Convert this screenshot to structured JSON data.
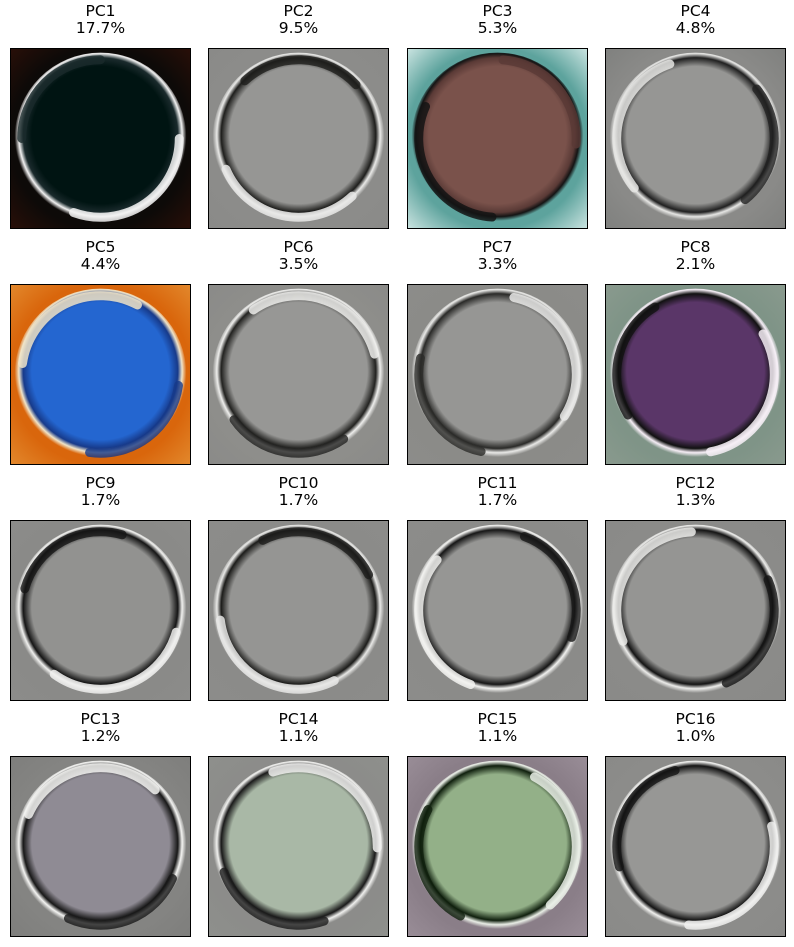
{
  "chart_data": {
    "type": "image-grid",
    "panels": [
      {
        "label": "PC1",
        "variance": "17.7%",
        "bg": "#0d0a08",
        "corner": "#2a0f08",
        "fill": "#001412",
        "ring": "#f2f2f2",
        "inner": "#1a2a2c"
      },
      {
        "label": "PC2",
        "variance": "9.5%",
        "bg": "#8c8c8a",
        "corner": "#8a8a88",
        "fill": "#969694",
        "ring": "#e9e9e7",
        "inner": "#1e1e1c"
      },
      {
        "label": "PC3",
        "variance": "5.3%",
        "bg": "#5da39d",
        "corner": "#d0e7e4",
        "fill": "#7a524b",
        "ring": "#141414",
        "inner": "#5a3a36"
      },
      {
        "label": "PC4",
        "variance": "4.8%",
        "bg": "#8a8a88",
        "corner": "#7f807e",
        "fill": "#969694",
        "ring": "#e6e6e4",
        "inner": "#202020"
      },
      {
        "label": "PC5",
        "variance": "4.4%",
        "bg": "#d9660c",
        "corner": "#e38a2e",
        "fill": "#2466d0",
        "ring": "#f0e4c8",
        "inner": "#173a8a"
      },
      {
        "label": "PC6",
        "variance": "3.5%",
        "bg": "#8e8e8b",
        "corner": "#8a8a88",
        "fill": "#979795",
        "ring": "#eeeeec",
        "inner": "#222220"
      },
      {
        "label": "PC7",
        "variance": "3.3%",
        "bg": "#8b8b88",
        "corner": "#8c8c8a",
        "fill": "#969694",
        "ring": "#e9e9e7",
        "inner": "#2a2a28"
      },
      {
        "label": "PC8",
        "variance": "2.1%",
        "bg": "#7f9487",
        "corner": "#8a9a8e",
        "fill": "#5a3668",
        "ring": "#f6eef6",
        "inner": "#111"
      },
      {
        "label": "PC9",
        "variance": "1.7%",
        "bg": "#8a8a88",
        "corner": "#8c8c8a",
        "fill": "#929290",
        "ring": "#f0f0ee",
        "inner": "#151515"
      },
      {
        "label": "PC10",
        "variance": "1.7%",
        "bg": "#8b8b89",
        "corner": "#8c8c8a",
        "fill": "#959593",
        "ring": "#e8e8e6",
        "inner": "#1c1c1a"
      },
      {
        "label": "PC11",
        "variance": "1.7%",
        "bg": "#8b8b89",
        "corner": "#8c8c8a",
        "fill": "#969694",
        "ring": "#f2f2f0",
        "inner": "#161616"
      },
      {
        "label": "PC12",
        "variance": "1.3%",
        "bg": "#8b8b89",
        "corner": "#8a8a88",
        "fill": "#959593",
        "ring": "#ececea",
        "inner": "#141414"
      },
      {
        "label": "PC13",
        "variance": "1.2%",
        "bg": "#848482",
        "corner": "#7e7e7c",
        "fill": "#8f8b94",
        "ring": "#f4f4f2",
        "inner": "#181818"
      },
      {
        "label": "PC14",
        "variance": "1.1%",
        "bg": "#8c8c8a",
        "corner": "#8e908c",
        "fill": "#a9b8a6",
        "ring": "#f0f0ee",
        "inner": "#1a1a1a"
      },
      {
        "label": "PC15",
        "variance": "1.1%",
        "bg": "#8a7e88",
        "corner": "#9a8e98",
        "fill": "#93b088",
        "ring": "#e9eee6",
        "inner": "#0f1f0d"
      },
      {
        "label": "PC16",
        "variance": "1.0%",
        "bg": "#8c8c8a",
        "corner": "#8a8a88",
        "fill": "#979795",
        "ring": "#f0f0ee",
        "inner": "#141414"
      }
    ]
  }
}
